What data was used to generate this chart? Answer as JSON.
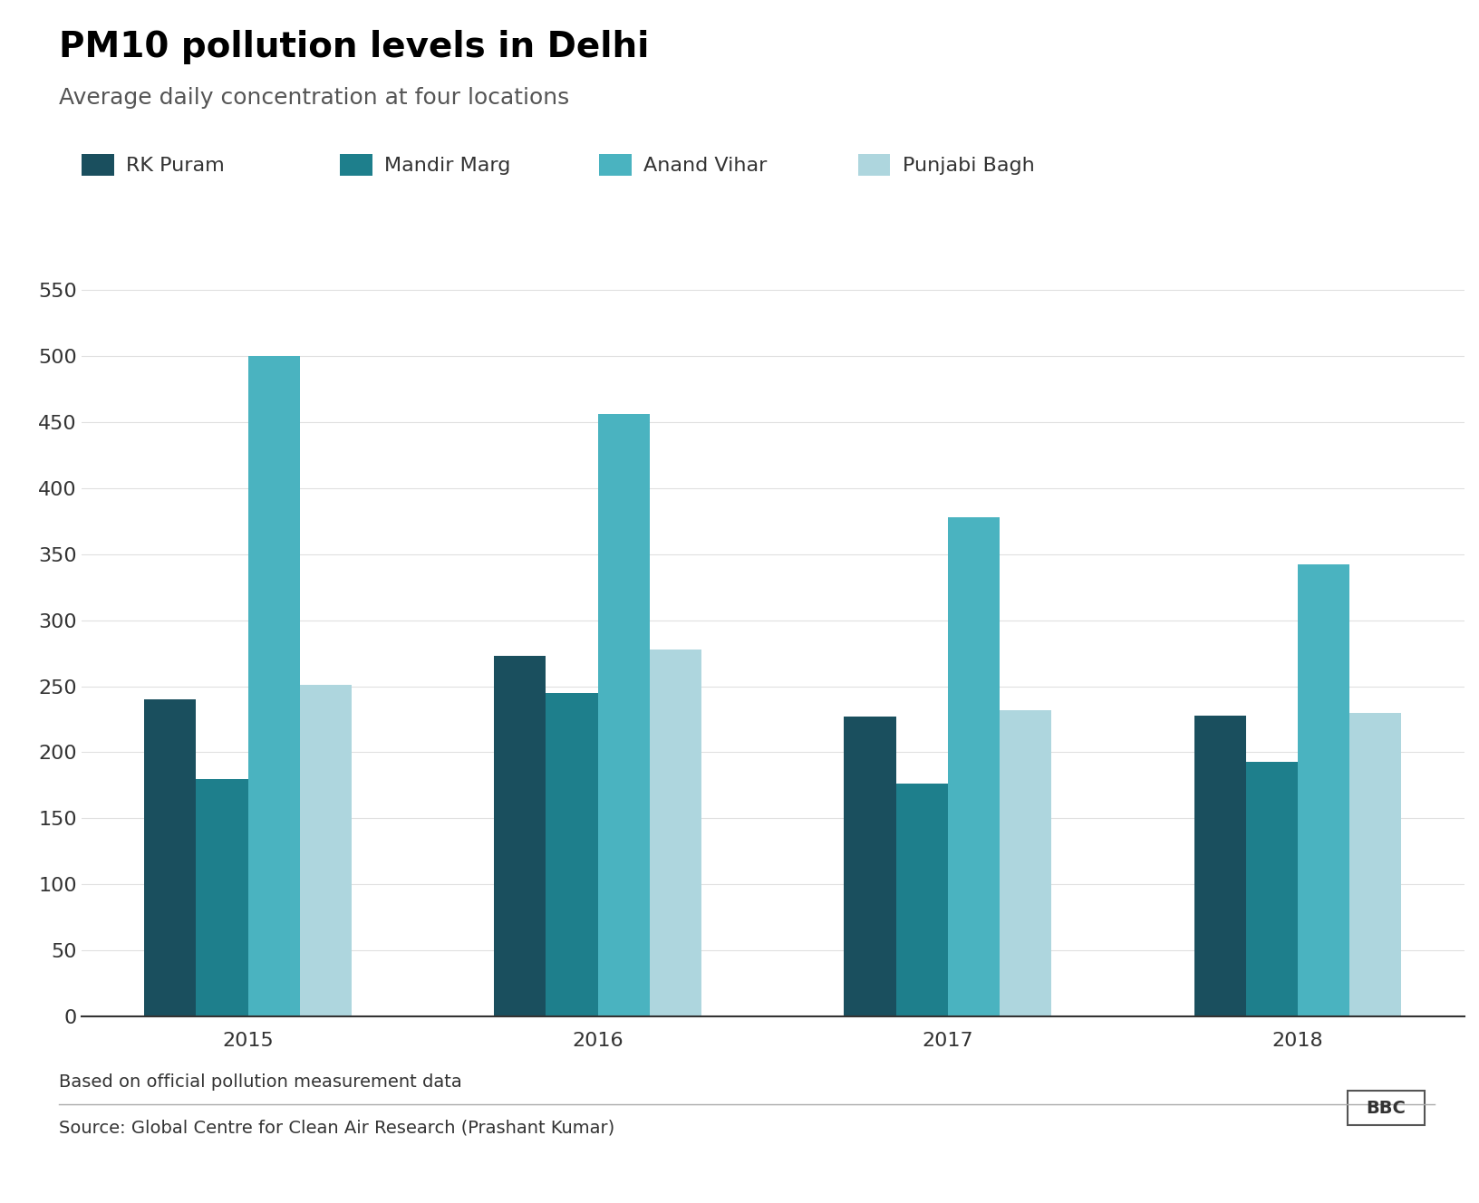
{
  "title": "PM10 pollution levels in Delhi",
  "subtitle": "Average daily concentration at four locations",
  "note": "Based on official pollution measurement data",
  "source": "Source: Global Centre for Clean Air Research (Prashant Kumar)",
  "years": [
    2015,
    2016,
    2017,
    2018
  ],
  "locations": [
    "RK Puram",
    "Mandir Marg",
    "Anand Vihar",
    "Punjabi Bagh"
  ],
  "colors": [
    "#1a4f5e",
    "#1e7f8c",
    "#4ab3c0",
    "#aed6de"
  ],
  "data": {
    "RK Puram": [
      240,
      273,
      227,
      228
    ],
    "Mandir Marg": [
      180,
      245,
      176,
      193
    ],
    "Anand Vihar": [
      500,
      456,
      378,
      342
    ],
    "Punjabi Bagh": [
      251,
      278,
      232,
      230
    ]
  },
  "ylim": [
    0,
    560
  ],
  "yticks": [
    0,
    50,
    100,
    150,
    200,
    250,
    300,
    350,
    400,
    450,
    500,
    550
  ],
  "background_color": "#ffffff",
  "title_fontsize": 28,
  "subtitle_fontsize": 18,
  "tick_fontsize": 16,
  "legend_fontsize": 16,
  "note_fontsize": 14,
  "source_fontsize": 14
}
